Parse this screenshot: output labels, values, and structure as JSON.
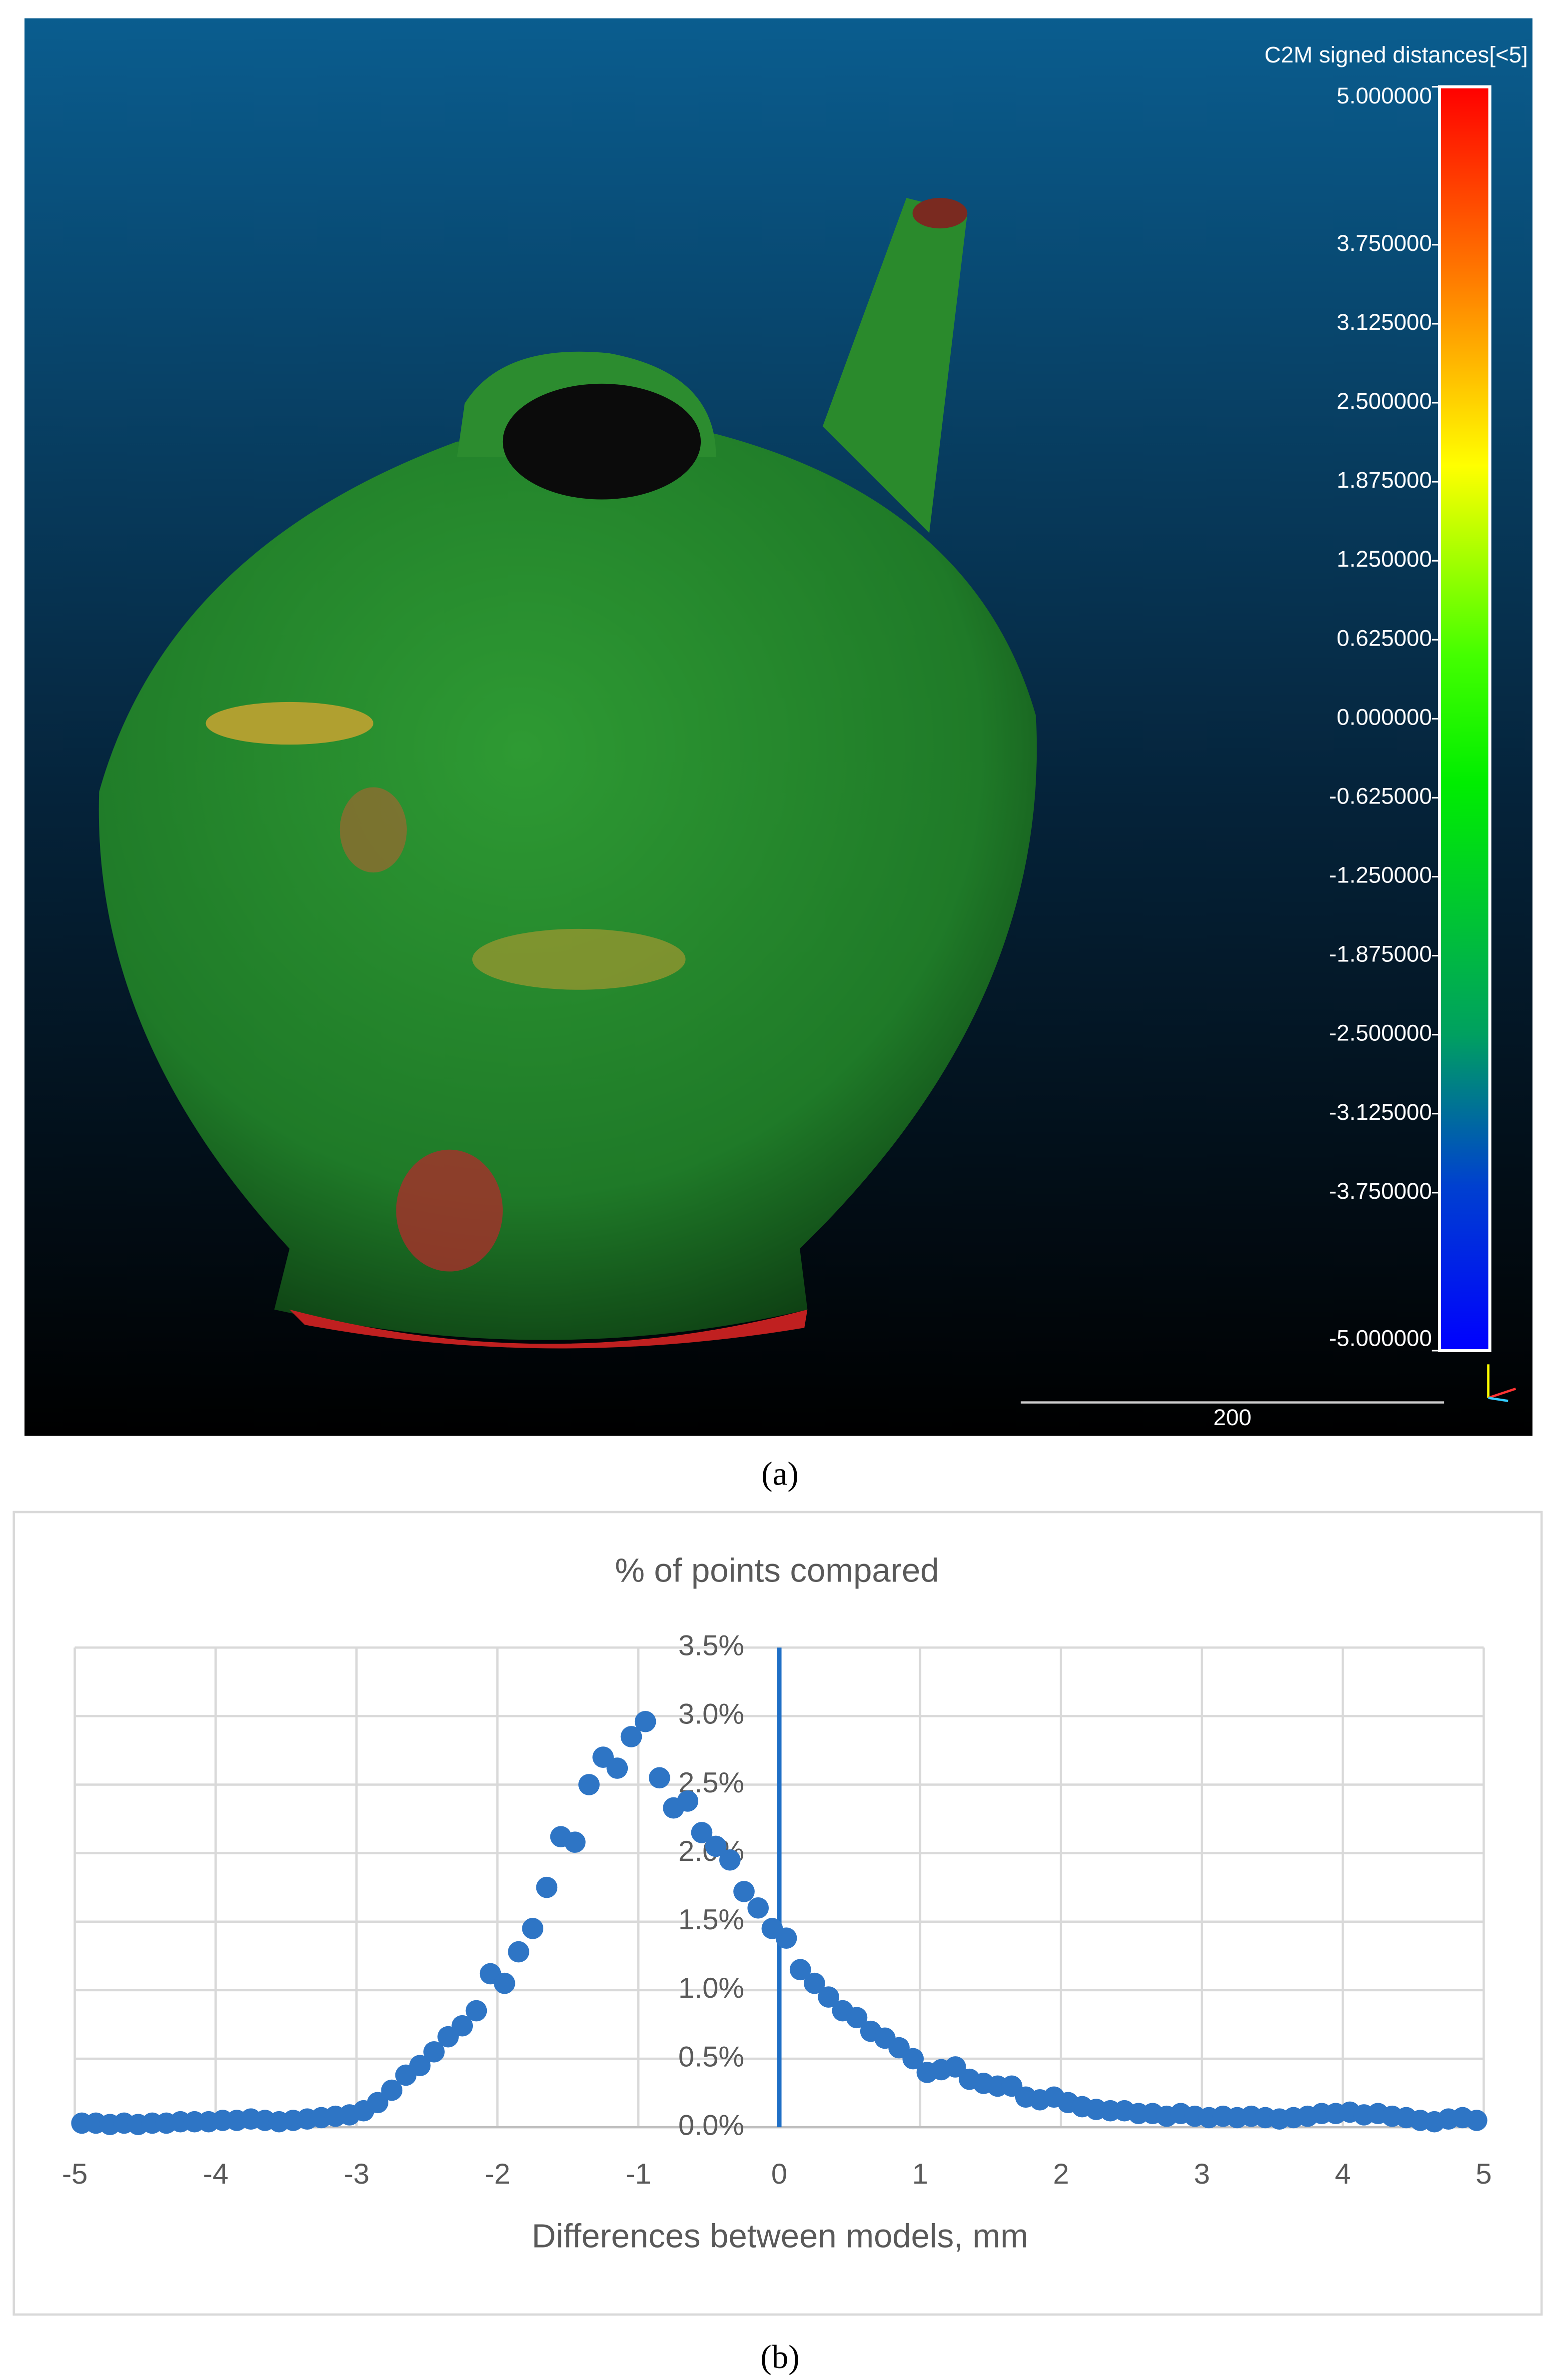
{
  "chart_data": [
    {
      "type": "colorbar",
      "panel_label": "(a)",
      "title": "C2M signed distances[<5]",
      "scale_bar": "200",
      "ylim": [
        -5,
        5
      ],
      "yticks": [
        {
          "value": 5,
          "label": "5.000000"
        },
        {
          "value": 3.75,
          "label": "3.750000"
        },
        {
          "value": 3.125,
          "label": "3.125000"
        },
        {
          "value": 2.5,
          "label": "2.500000"
        },
        {
          "value": 1.875,
          "label": "1.875000"
        },
        {
          "value": 1.25,
          "label": "1.250000"
        },
        {
          "value": 0.625,
          "label": "0.625000"
        },
        {
          "value": 0,
          "label": "0.000000"
        },
        {
          "value": -0.625,
          "label": "-0.625000"
        },
        {
          "value": -1.25,
          "label": "-1.250000"
        },
        {
          "value": -1.875,
          "label": "-1.875000"
        },
        {
          "value": -2.5,
          "label": "-2.500000"
        },
        {
          "value": -3.125,
          "label": "-3.125000"
        },
        {
          "value": -3.75,
          "label": "-3.750000"
        },
        {
          "value": -5,
          "label": "-5.000000"
        }
      ]
    },
    {
      "type": "scatter",
      "panel_label": "(b)",
      "title": "% of points compared",
      "xlabel": "Differences between models, mm",
      "color": "#2e75c5",
      "vline": 0,
      "vline_color": "#1f6fc6",
      "grid": true,
      "xlim": [
        -5,
        5
      ],
      "xticks": [
        -5,
        -4,
        -3,
        -2,
        -1,
        0,
        1,
        2,
        3,
        4,
        5
      ],
      "ylim": [
        0,
        3.5
      ],
      "yticks": [
        {
          "value": 0,
          "label": "0.0%"
        },
        {
          "value": 0.5,
          "label": "0.5%"
        },
        {
          "value": 1,
          "label": "1.0%"
        },
        {
          "value": 1.5,
          "label": "1.5%"
        },
        {
          "value": 2,
          "label": "2.0%"
        },
        {
          "value": 2.5,
          "label": "2.5%"
        },
        {
          "value": 3,
          "label": "3.0%"
        },
        {
          "value": 3.5,
          "label": "3.5%"
        }
      ],
      "x": [
        -4.95,
        -4.85,
        -4.75,
        -4.65,
        -4.55,
        -4.45,
        -4.35,
        -4.25,
        -4.15,
        -4.05,
        -3.95,
        -3.85,
        -3.75,
        -3.65,
        -3.55,
        -3.45,
        -3.35,
        -3.25,
        -3.15,
        -3.05,
        -2.95,
        -2.85,
        -2.75,
        -2.65,
        -2.55,
        -2.45,
        -2.35,
        -2.25,
        -2.15,
        -2.05,
        -1.95,
        -1.85,
        -1.75,
        -1.65,
        -1.55,
        -1.45,
        -1.35,
        -1.25,
        -1.15,
        -1.05,
        -0.95,
        -0.85,
        -0.75,
        -0.65,
        -0.55,
        -0.45,
        -0.35,
        -0.25,
        -0.15,
        -0.05,
        0.05,
        0.15,
        0.25,
        0.35,
        0.45,
        0.55,
        0.65,
        0.75,
        0.85,
        0.95,
        1.05,
        1.15,
        1.25,
        1.35,
        1.45,
        1.55,
        1.65,
        1.75,
        1.85,
        1.95,
        2.05,
        2.15,
        2.25,
        2.35,
        2.45,
        2.55,
        2.65,
        2.75,
        2.85,
        2.95,
        3.05,
        3.15,
        3.25,
        3.35,
        3.45,
        3.55,
        3.65,
        3.75,
        3.85,
        3.95,
        4.05,
        4.15,
        4.25,
        4.35,
        4.45,
        4.55,
        4.65,
        4.75,
        4.85,
        4.95
      ],
      "values": [
        0.03,
        0.03,
        0.02,
        0.03,
        0.02,
        0.03,
        0.03,
        0.04,
        0.04,
        0.04,
        0.05,
        0.05,
        0.06,
        0.05,
        0.04,
        0.05,
        0.06,
        0.07,
        0.08,
        0.09,
        0.12,
        0.18,
        0.27,
        0.38,
        0.45,
        0.55,
        0.66,
        0.74,
        0.85,
        1.12,
        1.05,
        1.28,
        1.45,
        1.75,
        2.12,
        2.08,
        2.5,
        2.7,
        2.62,
        2.85,
        2.96,
        2.55,
        2.33,
        2.38,
        2.15,
        2.05,
        1.95,
        1.72,
        1.6,
        1.45,
        1.38,
        1.15,
        1.05,
        0.95,
        0.85,
        0.8,
        0.7,
        0.65,
        0.58,
        0.5,
        0.4,
        0.42,
        0.44,
        0.35,
        0.32,
        0.3,
        0.3,
        0.22,
        0.2,
        0.22,
        0.18,
        0.15,
        0.13,
        0.12,
        0.12,
        0.1,
        0.1,
        0.08,
        0.1,
        0.08,
        0.07,
        0.08,
        0.07,
        0.08,
        0.07,
        0.06,
        0.07,
        0.08,
        0.1,
        0.1,
        0.11,
        0.09,
        0.1,
        0.08,
        0.07,
        0.05,
        0.04,
        0.06,
        0.07,
        0.05
      ]
    }
  ]
}
